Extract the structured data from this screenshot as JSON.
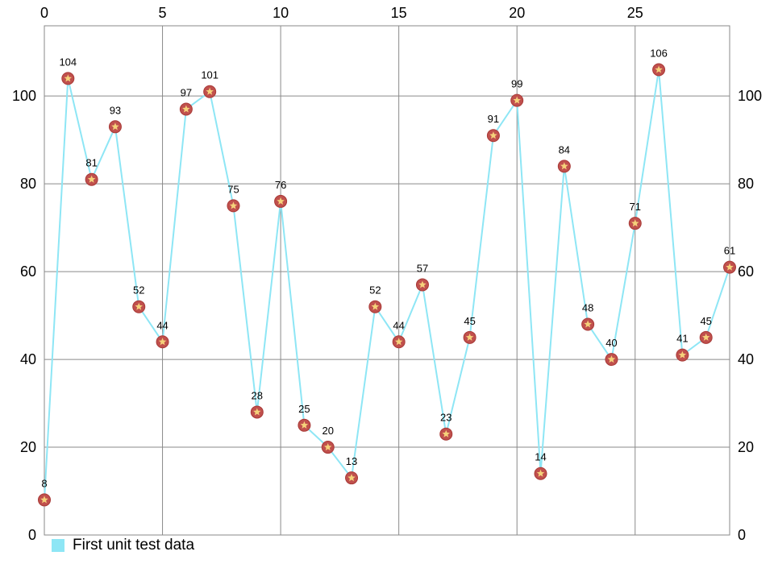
{
  "chart_data": {
    "type": "line",
    "x": [
      0,
      1,
      2,
      3,
      4,
      5,
      6,
      7,
      8,
      9,
      10,
      11,
      12,
      13,
      14,
      15,
      16,
      17,
      18,
      19,
      20,
      21,
      22,
      23,
      24,
      25,
      26,
      27,
      28,
      29
    ],
    "series": [
      {
        "name": "First unit test data",
        "values": [
          8,
          104,
          81,
          93,
          52,
          44,
          97,
          101,
          75,
          28,
          76,
          25,
          20,
          13,
          52,
          44,
          57,
          23,
          45,
          91,
          99,
          14,
          84,
          48,
          40,
          71,
          106,
          41,
          45,
          61
        ]
      }
    ],
    "x_ticks": [
      "0",
      "5",
      "10",
      "15",
      "20",
      "25"
    ],
    "y_ticks": [
      "0",
      "20",
      "40",
      "60",
      "80",
      "100"
    ],
    "xlim": [
      0,
      29
    ],
    "ylim": [
      0,
      116
    ],
    "x_axis_position": "top",
    "y_axes": "left and right",
    "grid": true,
    "legend": "bottom-left",
    "colors": {
      "line": "#8ee6f5",
      "marker_fill": "#c0504d",
      "marker_star": "#f5d27a",
      "grid": "#8a8a8a",
      "legend_swatch": "#8ee6f5"
    },
    "marker": "star-in-circle"
  }
}
